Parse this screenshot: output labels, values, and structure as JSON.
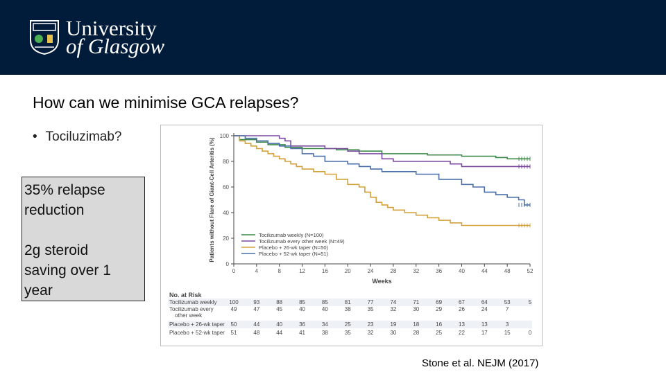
{
  "header": {
    "logo_line1": "University",
    "logo_line2": "of Glasgow"
  },
  "slide": {
    "title": "How can we minimise GCA relapses?",
    "bullet": "Tociluzimab?",
    "callout_line1": "35% relapse\nreduction",
    "callout_line2": "2g steroid\nsaving over 1\nyear",
    "citation": "Stone et al. NEJM (2017)"
  },
  "colors": {
    "header_bg": "#011b3a",
    "callout_bg": "#d9d9d9",
    "green": "#3c8a4a",
    "purple": "#7b4aa0",
    "orange": "#d4a03a",
    "blue": "#4a6fa8"
  },
  "chart_data": {
    "type": "line",
    "ylabel": "Patients without Flare of Giant-Cell Arteritis (%)",
    "xlabel": "Weeks",
    "xlim": [
      0,
      52
    ],
    "ylim": [
      0,
      100
    ],
    "x_ticks": [
      0,
      4,
      8,
      12,
      16,
      20,
      24,
      28,
      32,
      36,
      40,
      44,
      48,
      52
    ],
    "y_ticks": [
      0,
      20,
      40,
      60,
      80,
      100
    ],
    "legend_position": "bottom-left",
    "series": [
      {
        "name": "Tocilizumab weekly (N=100)",
        "color": "#3c8a4a",
        "points": [
          [
            0,
            100
          ],
          [
            1,
            97
          ],
          [
            4,
            95
          ],
          [
            6,
            93
          ],
          [
            9,
            91
          ],
          [
            12,
            90
          ],
          [
            16,
            90
          ],
          [
            18,
            89
          ],
          [
            22,
            88
          ],
          [
            26,
            86
          ],
          [
            32,
            86
          ],
          [
            34,
            85
          ],
          [
            38,
            85
          ],
          [
            40,
            84
          ],
          [
            44,
            84
          ],
          [
            46,
            83
          ],
          [
            48,
            82
          ],
          [
            52,
            82
          ]
        ]
      },
      {
        "name": "Tocilizumab every other week (N=49)",
        "color": "#7b4aa0",
        "points": [
          [
            0,
            100
          ],
          [
            7,
            100
          ],
          [
            8,
            98
          ],
          [
            9,
            96
          ],
          [
            10,
            92
          ],
          [
            14,
            92
          ],
          [
            16,
            90
          ],
          [
            20,
            88
          ],
          [
            22,
            86
          ],
          [
            26,
            82
          ],
          [
            28,
            80
          ],
          [
            36,
            80
          ],
          [
            38,
            78
          ],
          [
            40,
            76
          ],
          [
            52,
            76
          ]
        ]
      },
      {
        "name": "Placebo + 26-wk taper (N=50)",
        "color": "#d4a03a",
        "points": [
          [
            0,
            100
          ],
          [
            1,
            96
          ],
          [
            2,
            94
          ],
          [
            3,
            92
          ],
          [
            4,
            90
          ],
          [
            5,
            88
          ],
          [
            6,
            86
          ],
          [
            7,
            84
          ],
          [
            8,
            82
          ],
          [
            9,
            80
          ],
          [
            10,
            78
          ],
          [
            11,
            76
          ],
          [
            12,
            74
          ],
          [
            14,
            72
          ],
          [
            16,
            70
          ],
          [
            18,
            66
          ],
          [
            20,
            62
          ],
          [
            22,
            60
          ],
          [
            23,
            56
          ],
          [
            24,
            52
          ],
          [
            25,
            48
          ],
          [
            26,
            46
          ],
          [
            27,
            44
          ],
          [
            28,
            42
          ],
          [
            30,
            40
          ],
          [
            32,
            38
          ],
          [
            34,
            36
          ],
          [
            36,
            34
          ],
          [
            38,
            32
          ],
          [
            40,
            30
          ],
          [
            52,
            30
          ]
        ]
      },
      {
        "name": "Placebo + 52-wk taper (N=51)",
        "color": "#4a6fa8",
        "points": [
          [
            0,
            100
          ],
          [
            2,
            98
          ],
          [
            4,
            96
          ],
          [
            6,
            94
          ],
          [
            8,
            92
          ],
          [
            10,
            90
          ],
          [
            12,
            86
          ],
          [
            14,
            84
          ],
          [
            16,
            80
          ],
          [
            18,
            80
          ],
          [
            20,
            78
          ],
          [
            22,
            76
          ],
          [
            24,
            74
          ],
          [
            26,
            72
          ],
          [
            32,
            70
          ],
          [
            36,
            66
          ],
          [
            40,
            62
          ],
          [
            42,
            60
          ],
          [
            44,
            56
          ],
          [
            46,
            54
          ],
          [
            48,
            52
          ],
          [
            50,
            50
          ],
          [
            51,
            46
          ],
          [
            52,
            46
          ]
        ]
      }
    ],
    "risk_table": {
      "title": "No. at Risk",
      "rows": [
        {
          "label": "Tocilizumab weekly",
          "values": [
            "100",
            "93",
            "88",
            "85",
            "85",
            "81",
            "77",
            "74",
            "71",
            "69",
            "67",
            "64",
            "53",
            "5"
          ]
        },
        {
          "label": "Tocilizumab every",
          "label2": "other week",
          "values": [
            "49",
            "47",
            "45",
            "40",
            "40",
            "38",
            "35",
            "32",
            "30",
            "29",
            "26",
            "24",
            "7",
            ""
          ]
        },
        {
          "label": "Placebo + 26-wk taper",
          "values": [
            "50",
            "44",
            "40",
            "36",
            "34",
            "25",
            "23",
            "19",
            "18",
            "16",
            "13",
            "13",
            "3",
            ""
          ]
        },
        {
          "label": "Placebo + 52-wk taper",
          "values": [
            "51",
            "48",
            "44",
            "41",
            "38",
            "35",
            "32",
            "30",
            "28",
            "25",
            "22",
            "17",
            "15",
            "0"
          ]
        }
      ]
    }
  }
}
